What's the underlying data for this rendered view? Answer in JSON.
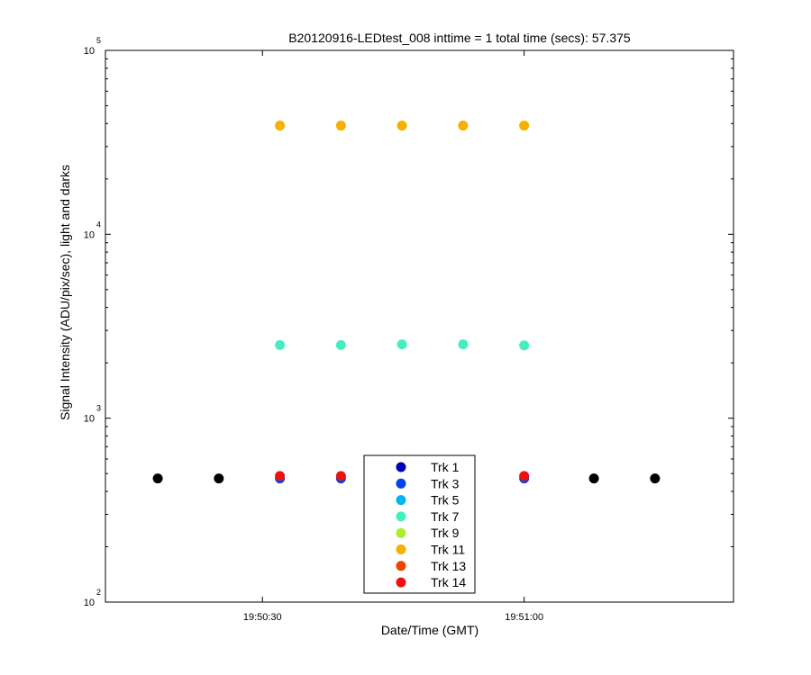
{
  "chart_data": {
    "type": "scatter",
    "title": "B20120916-LEDtest_008 inttime = 1 total time (secs): 57.375",
    "xlabel": "Date/Time (GMT)",
    "ylabel": "Signal Intensity (ADU/pix/sec), light and darks",
    "y_scale": "log",
    "ylim": [
      100,
      100000
    ],
    "xlim": [
      "19:50:12",
      "19:51:24"
    ],
    "x_ticks": [
      {
        "t": "19:50:30",
        "label": "19:50:30"
      },
      {
        "t": "19:51:00",
        "label": "19:51:00"
      }
    ],
    "y_ticks": [
      {
        "value": 100,
        "base": "10",
        "exp": "2"
      },
      {
        "value": 1000,
        "base": "10",
        "exp": "3"
      },
      {
        "value": 10000,
        "base": "10",
        "exp": "4"
      },
      {
        "value": 100000,
        "base": "10",
        "exp": "5"
      }
    ],
    "grid": false,
    "legend_position": "bottom-center",
    "series": [
      {
        "name": "Trk 1",
        "color": "#0000bb",
        "x": [],
        "y": []
      },
      {
        "name": "Trk 3",
        "color": "#0044ee",
        "x": [
          "19:50:32",
          "19:50:39",
          "19:51:00"
        ],
        "y": [
          470,
          470,
          470
        ]
      },
      {
        "name": "Trk 5",
        "color": "#00b4ee",
        "x": [],
        "y": []
      },
      {
        "name": "Trk 7",
        "color": "#44eec0",
        "x": [
          "19:50:32",
          "19:50:39",
          "19:50:46",
          "19:50:53",
          "19:51:00"
        ],
        "y": [
          2500,
          2500,
          2520,
          2520,
          2490
        ]
      },
      {
        "name": "Trk 9",
        "color": "#aaee33",
        "x": [],
        "y": []
      },
      {
        "name": "Trk 11",
        "color": "#f5b000",
        "x": [
          "19:50:32",
          "19:50:39",
          "19:50:46",
          "19:50:53",
          "19:51:00"
        ],
        "y": [
          39000,
          39000,
          39000,
          39000,
          39000
        ]
      },
      {
        "name": "Trk 13",
        "color": "#ee4400",
        "x": [],
        "y": []
      },
      {
        "name": "Trk 14",
        "color": "#ee1111",
        "x": [
          "19:50:32",
          "19:50:39",
          "19:51:00"
        ],
        "y": [
          485,
          485,
          485
        ]
      },
      {
        "name": "",
        "color": "#000000",
        "x": [
          "19:50:18",
          "19:50:25",
          "19:51:08",
          "19:51:15"
        ],
        "y": [
          470,
          470,
          470,
          470
        ]
      }
    ]
  }
}
